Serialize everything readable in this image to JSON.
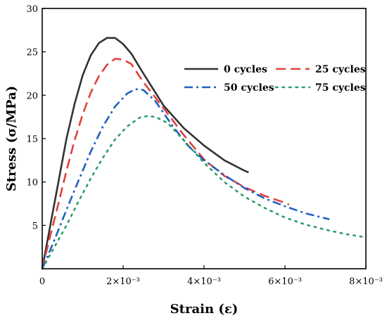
{
  "chart_data": {
    "type": "line",
    "xlabel": "Strain (ε)",
    "ylabel": "Stress (σ/MPa)",
    "xlim": [
      0,
      0.008
    ],
    "ylim": [
      0,
      30
    ],
    "x_ticks": [
      {
        "value": 0,
        "label": "0"
      },
      {
        "value": 0.002,
        "label": "2×10⁻³"
      },
      {
        "value": 0.004,
        "label": "4×10⁻³"
      },
      {
        "value": 0.006,
        "label": "6×10⁻³"
      },
      {
        "value": 0.008,
        "label": "8×10⁻³"
      }
    ],
    "y_ticks": [
      {
        "value": 5,
        "label": "5"
      },
      {
        "value": 10,
        "label": "10"
      },
      {
        "value": 15,
        "label": "15"
      },
      {
        "value": 20,
        "label": "20"
      },
      {
        "value": 25,
        "label": "25"
      },
      {
        "value": 30,
        "label": "30"
      }
    ],
    "grid": false,
    "legend_position": "top-right",
    "series": [
      {
        "name": "0 cycles",
        "color": "#333333",
        "dash": "solid",
        "points": [
          [
            0,
            0
          ],
          [
            0.0002,
            5
          ],
          [
            0.0004,
            10
          ],
          [
            0.0006,
            15
          ],
          [
            0.0008,
            19
          ],
          [
            0.001,
            22.3
          ],
          [
            0.0012,
            24.6
          ],
          [
            0.0014,
            26
          ],
          [
            0.0016,
            26.6
          ],
          [
            0.0018,
            26.6
          ],
          [
            0.002,
            25.9
          ],
          [
            0.0022,
            24.8
          ],
          [
            0.0025,
            22.5
          ],
          [
            0.003,
            18.8
          ],
          [
            0.0035,
            16.2
          ],
          [
            0.004,
            14.2
          ],
          [
            0.0045,
            12.5
          ],
          [
            0.005,
            11.3
          ],
          [
            0.0051,
            11.1
          ]
        ]
      },
      {
        "name": "25 cycles",
        "color": "#e0413f",
        "dash": "long-dash",
        "points": [
          [
            0,
            0
          ],
          [
            0.0002,
            3.8
          ],
          [
            0.0004,
            7.5
          ],
          [
            0.0006,
            11.3
          ],
          [
            0.0008,
            14.8
          ],
          [
            0.001,
            17.8
          ],
          [
            0.0012,
            20.3
          ],
          [
            0.0014,
            22.2
          ],
          [
            0.0016,
            23.5
          ],
          [
            0.0018,
            24.2
          ],
          [
            0.002,
            24.1
          ],
          [
            0.0022,
            23.6
          ],
          [
            0.0025,
            21.5
          ],
          [
            0.003,
            18.5
          ],
          [
            0.0035,
            15.4
          ],
          [
            0.004,
            12.6
          ],
          [
            0.0045,
            10.7
          ],
          [
            0.005,
            9.4
          ],
          [
            0.0055,
            8.4
          ],
          [
            0.006,
            7.6
          ],
          [
            0.0061,
            7.4
          ]
        ]
      },
      {
        "name": "50 cycles",
        "color": "#2060c0",
        "dash": "dash-dot",
        "points": [
          [
            0,
            0
          ],
          [
            0.0003,
            3.3
          ],
          [
            0.0006,
            6.8
          ],
          [
            0.0009,
            10.2
          ],
          [
            0.0012,
            13.5
          ],
          [
            0.0015,
            16.4
          ],
          [
            0.0018,
            18.7
          ],
          [
            0.0021,
            20.2
          ],
          [
            0.0023,
            20.7
          ],
          [
            0.0025,
            20.6
          ],
          [
            0.0028,
            19.3
          ],
          [
            0.0032,
            16.6
          ],
          [
            0.0036,
            14.2
          ],
          [
            0.004,
            12.5
          ],
          [
            0.0045,
            10.8
          ],
          [
            0.005,
            9.3
          ],
          [
            0.0055,
            8.1
          ],
          [
            0.006,
            7.2
          ],
          [
            0.0065,
            6.4
          ],
          [
            0.0071,
            5.7
          ]
        ]
      },
      {
        "name": "75 cycles",
        "color": "#2a9d6a",
        "dash": "dotted",
        "points": [
          [
            0,
            0
          ],
          [
            0.0003,
            2.5
          ],
          [
            0.0006,
            5
          ],
          [
            0.0009,
            7.8
          ],
          [
            0.0012,
            10.4
          ],
          [
            0.0015,
            12.8
          ],
          [
            0.0018,
            14.9
          ],
          [
            0.0021,
            16.4
          ],
          [
            0.0024,
            17.4
          ],
          [
            0.0026,
            17.6
          ],
          [
            0.0028,
            17.5
          ],
          [
            0.0031,
            16.8
          ],
          [
            0.0035,
            14.8
          ],
          [
            0.004,
            12.2
          ],
          [
            0.0045,
            10
          ],
          [
            0.005,
            8.3
          ],
          [
            0.0055,
            7
          ],
          [
            0.006,
            5.9
          ],
          [
            0.0065,
            5.1
          ],
          [
            0.007,
            4.5
          ],
          [
            0.0075,
            4
          ],
          [
            0.0079,
            3.7
          ]
        ]
      }
    ]
  }
}
